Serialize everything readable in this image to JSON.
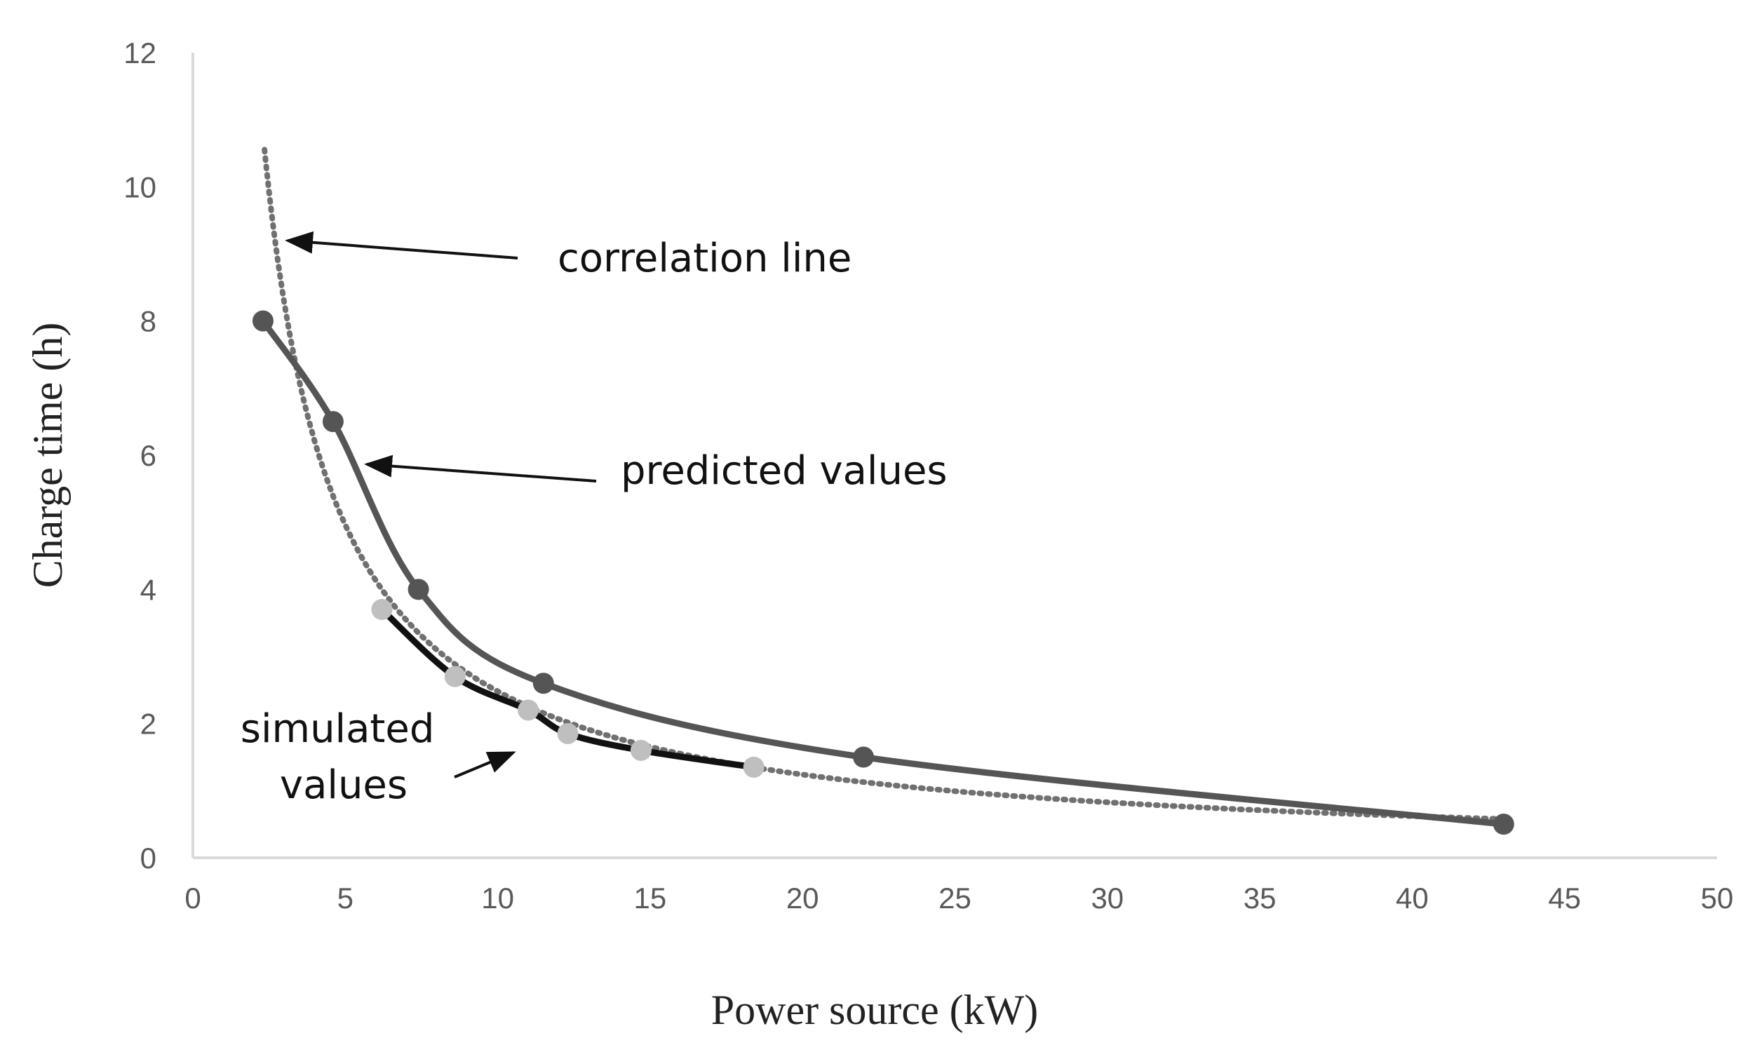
{
  "chart_data": {
    "type": "line",
    "title": "",
    "xlabel": "Power source (kW)",
    "ylabel": "Charge time (h)",
    "xlim": [
      0,
      50
    ],
    "ylim": [
      0,
      12
    ],
    "xticks": [
      0,
      5,
      10,
      15,
      20,
      25,
      30,
      35,
      40,
      45,
      50
    ],
    "yticks": [
      0,
      2,
      4,
      6,
      8,
      10,
      12
    ],
    "grid": false,
    "series": [
      {
        "name": "predicted values",
        "style": "solid-smooth-markers",
        "color": "#555555",
        "x": [
          2.3,
          4.6,
          7.4,
          11.5,
          22,
          43
        ],
        "y": [
          8.0,
          6.5,
          4.0,
          2.6,
          1.5,
          0.5
        ]
      },
      {
        "name": "simulated values",
        "style": "solid-smooth-markers",
        "color": "#111111",
        "marker_color": "#bfbfbf",
        "x": [
          6.2,
          8.6,
          11.0,
          12.3,
          14.7,
          18.4
        ],
        "y": [
          3.7,
          2.7,
          2.2,
          1.85,
          1.6,
          1.35
        ]
      },
      {
        "name": "correlation line",
        "style": "dotted",
        "color": "#707070",
        "function": "y = 24.8 / x",
        "x_range": [
          2.35,
          43
        ]
      }
    ],
    "annotations": [
      {
        "text": "correlation line",
        "points_to": "correlation line"
      },
      {
        "text": "predicted values",
        "points_to": "predicted values"
      },
      {
        "text_lines": [
          "simulated",
          "values"
        ],
        "points_to": "simulated values"
      }
    ]
  }
}
